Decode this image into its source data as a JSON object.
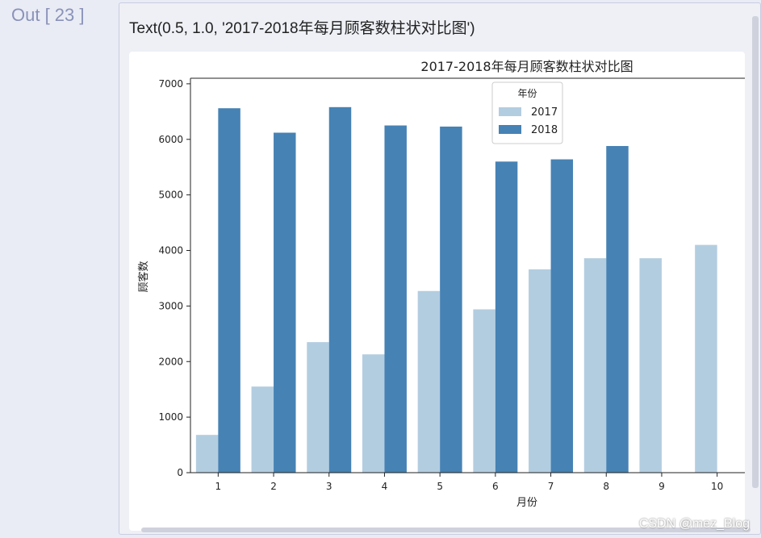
{
  "prompt": {
    "label": "Out [ 23 ]"
  },
  "output": {
    "repr": "Text(0.5, 1.0, '2017-2018年每月顾客数柱状对比图')"
  },
  "watermark": "CSDN @mez_Blog",
  "chart_data": {
    "type": "bar",
    "title": "2017-2018年每月顾客数柱状对比图",
    "xlabel": "月份",
    "ylabel": "顾客数",
    "categories": [
      "1",
      "2",
      "3",
      "4",
      "5",
      "6",
      "7",
      "8",
      "9",
      "10"
    ],
    "ylim": [
      0,
      7100
    ],
    "yticks": [
      0,
      1000,
      2000,
      3000,
      4000,
      5000,
      6000,
      7000
    ],
    "legend": {
      "title": "年份",
      "placement": "top-center"
    },
    "series": [
      {
        "name": "2017",
        "color": "#b3cde0",
        "values": [
          680,
          1550,
          2350,
          2130,
          3270,
          2940,
          3660,
          3860,
          3860,
          4100
        ]
      },
      {
        "name": "2018",
        "color": "#4682b4",
        "values": [
          6560,
          6120,
          6580,
          6250,
          6230,
          5600,
          5640,
          5880,
          null,
          null
        ]
      }
    ]
  }
}
